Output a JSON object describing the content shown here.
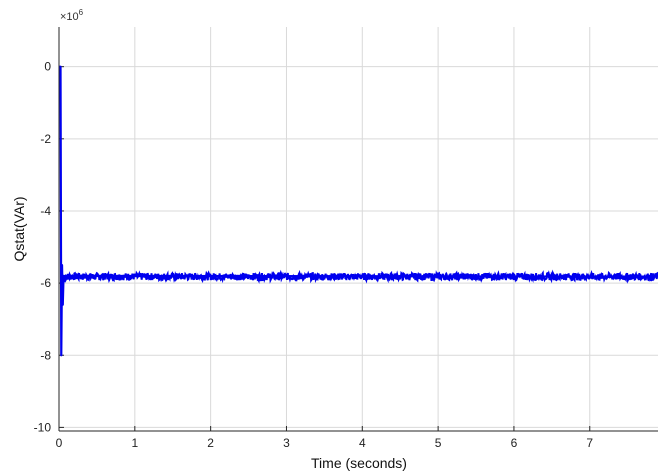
{
  "chart_data": {
    "type": "line",
    "xlabel": "Time (seconds)",
    "ylabel": "Qstat(VAr)",
    "y_exponent_label": "×10",
    "y_exponent_power": "6",
    "xlim": [
      0,
      7.9
    ],
    "ylim": [
      -10.1,
      1.1
    ],
    "x_ticks": [
      0,
      1,
      2,
      3,
      4,
      5,
      6,
      7
    ],
    "y_ticks": [
      0,
      -2,
      -4,
      -6,
      -8,
      -10
    ],
    "grid": true,
    "series": [
      {
        "color": "#0000ee",
        "points": [
          [
            0.0,
            0.0
          ],
          [
            0.02,
            0.0
          ],
          [
            0.03,
            -8.0
          ],
          [
            0.04,
            -5.5
          ],
          [
            0.05,
            -6.6
          ],
          [
            0.06,
            -5.8
          ],
          [
            0.07,
            -5.95
          ],
          [
            0.08,
            -5.8
          ],
          [
            7.9,
            -5.82
          ]
        ],
        "steady_state_value": -5.82,
        "steady_state_start": 0.08,
        "noise_amplitude": 0.1
      }
    ]
  },
  "colors": {
    "line": "#0000ee",
    "grid": "#d9d9d9",
    "axis": "#262626"
  }
}
